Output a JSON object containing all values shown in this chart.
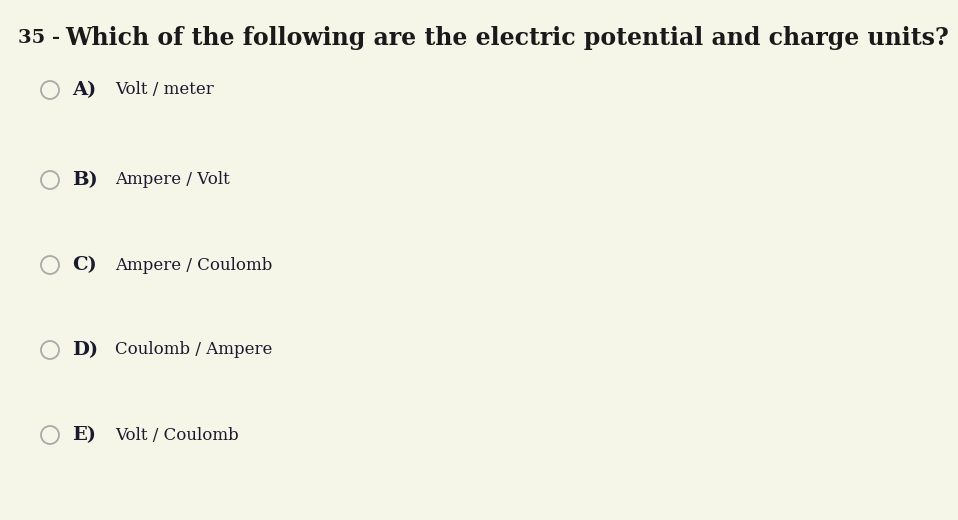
{
  "background_color": "#f5f5e8",
  "question_number": "35 -",
  "question_text": "Which of the following are the electric potential and charge units?",
  "question_number_color": "#1a1a1a",
  "question_text_color": "#1a1a1a",
  "options": [
    {
      "label": "A)",
      "text": "Volt / meter"
    },
    {
      "label": "B)",
      "text": "Ampere / Volt"
    },
    {
      "label": "C)",
      "text": "Ampere / Coulomb"
    },
    {
      "label": "D)",
      "text": "Coulomb / Ampere"
    },
    {
      "label": "E)",
      "text": "Volt / Coulomb"
    }
  ],
  "option_label_color": "#1a1a2e",
  "option_text_color": "#1a1a2e",
  "circle_edge_color": "#aaaaaa",
  "question_number_fontsize": 14,
  "question_text_fontsize": 17,
  "option_label_fontsize": 14,
  "option_text_fontsize": 12,
  "fig_width": 9.58,
  "fig_height": 5.2,
  "dpi": 100
}
